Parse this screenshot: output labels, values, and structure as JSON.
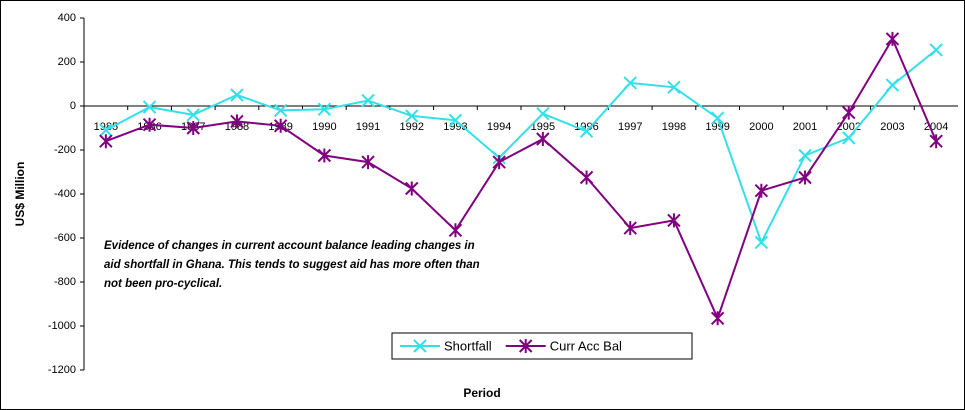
{
  "chart_data": {
    "type": "line",
    "x_label": "Period",
    "y_label": "US$ Million",
    "annotation": [
      "Evidence of changes in current account balance leading changes in",
      "aid shortfall in Ghana. This tends to suggest aid has more often than",
      "not been pro-cyclical."
    ],
    "categories": [
      "1985",
      "1986",
      "1987",
      "1988",
      "1989",
      "1990",
      "1991",
      "1992",
      "1993",
      "1994",
      "1995",
      "1996",
      "1997",
      "1998",
      "1999",
      "2000",
      "2001",
      "2002",
      "2003",
      "2004"
    ],
    "series": [
      {
        "name": "Shortfall",
        "color": "#33e0e8",
        "marker": "x",
        "values": [
          -110,
          -5,
          -40,
          50,
          -20,
          -15,
          25,
          -45,
          -65,
          -235,
          -35,
          -115,
          105,
          85,
          -55,
          -620,
          -225,
          -145,
          95,
          255
        ]
      },
      {
        "name": "Curr Acc Bal",
        "color": "#800080",
        "marker": "asterisk",
        "values": [
          -160,
          -85,
          -100,
          -70,
          -90,
          -225,
          -255,
          -375,
          -565,
          -255,
          -150,
          -325,
          -555,
          -520,
          -965,
          -385,
          -325,
          -30,
          305,
          -160
        ]
      }
    ],
    "ylim": [
      -1200,
      400
    ],
    "yticks": [
      -1200,
      -1000,
      -800,
      -600,
      -400,
      -200,
      0,
      200,
      400
    ],
    "legend": "lower center"
  }
}
